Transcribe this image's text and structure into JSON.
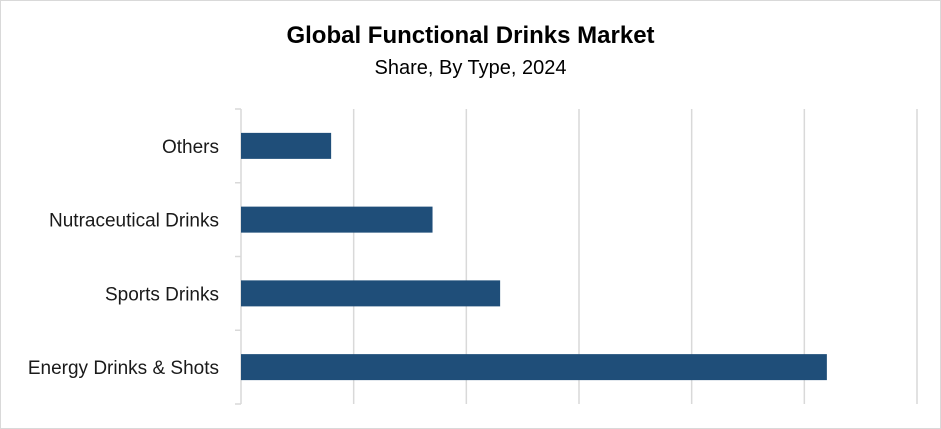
{
  "chart_data": {
    "type": "bar",
    "orientation": "horizontal",
    "title": "Global Functional Drinks Market",
    "subtitle": "Share, By Type, 2024",
    "categories": [
      "Energy Drinks & Shots",
      "Sports Drinks",
      "Nutraceutical Drinks",
      "Others"
    ],
    "values": [
      52,
      23,
      17,
      8
    ],
    "xlim": [
      0,
      60
    ],
    "grid": true,
    "legend": "none",
    "colors": {
      "bar": "#1f4e79",
      "grid": "#d9d9d9",
      "axis": "#d9d9d9"
    }
  }
}
